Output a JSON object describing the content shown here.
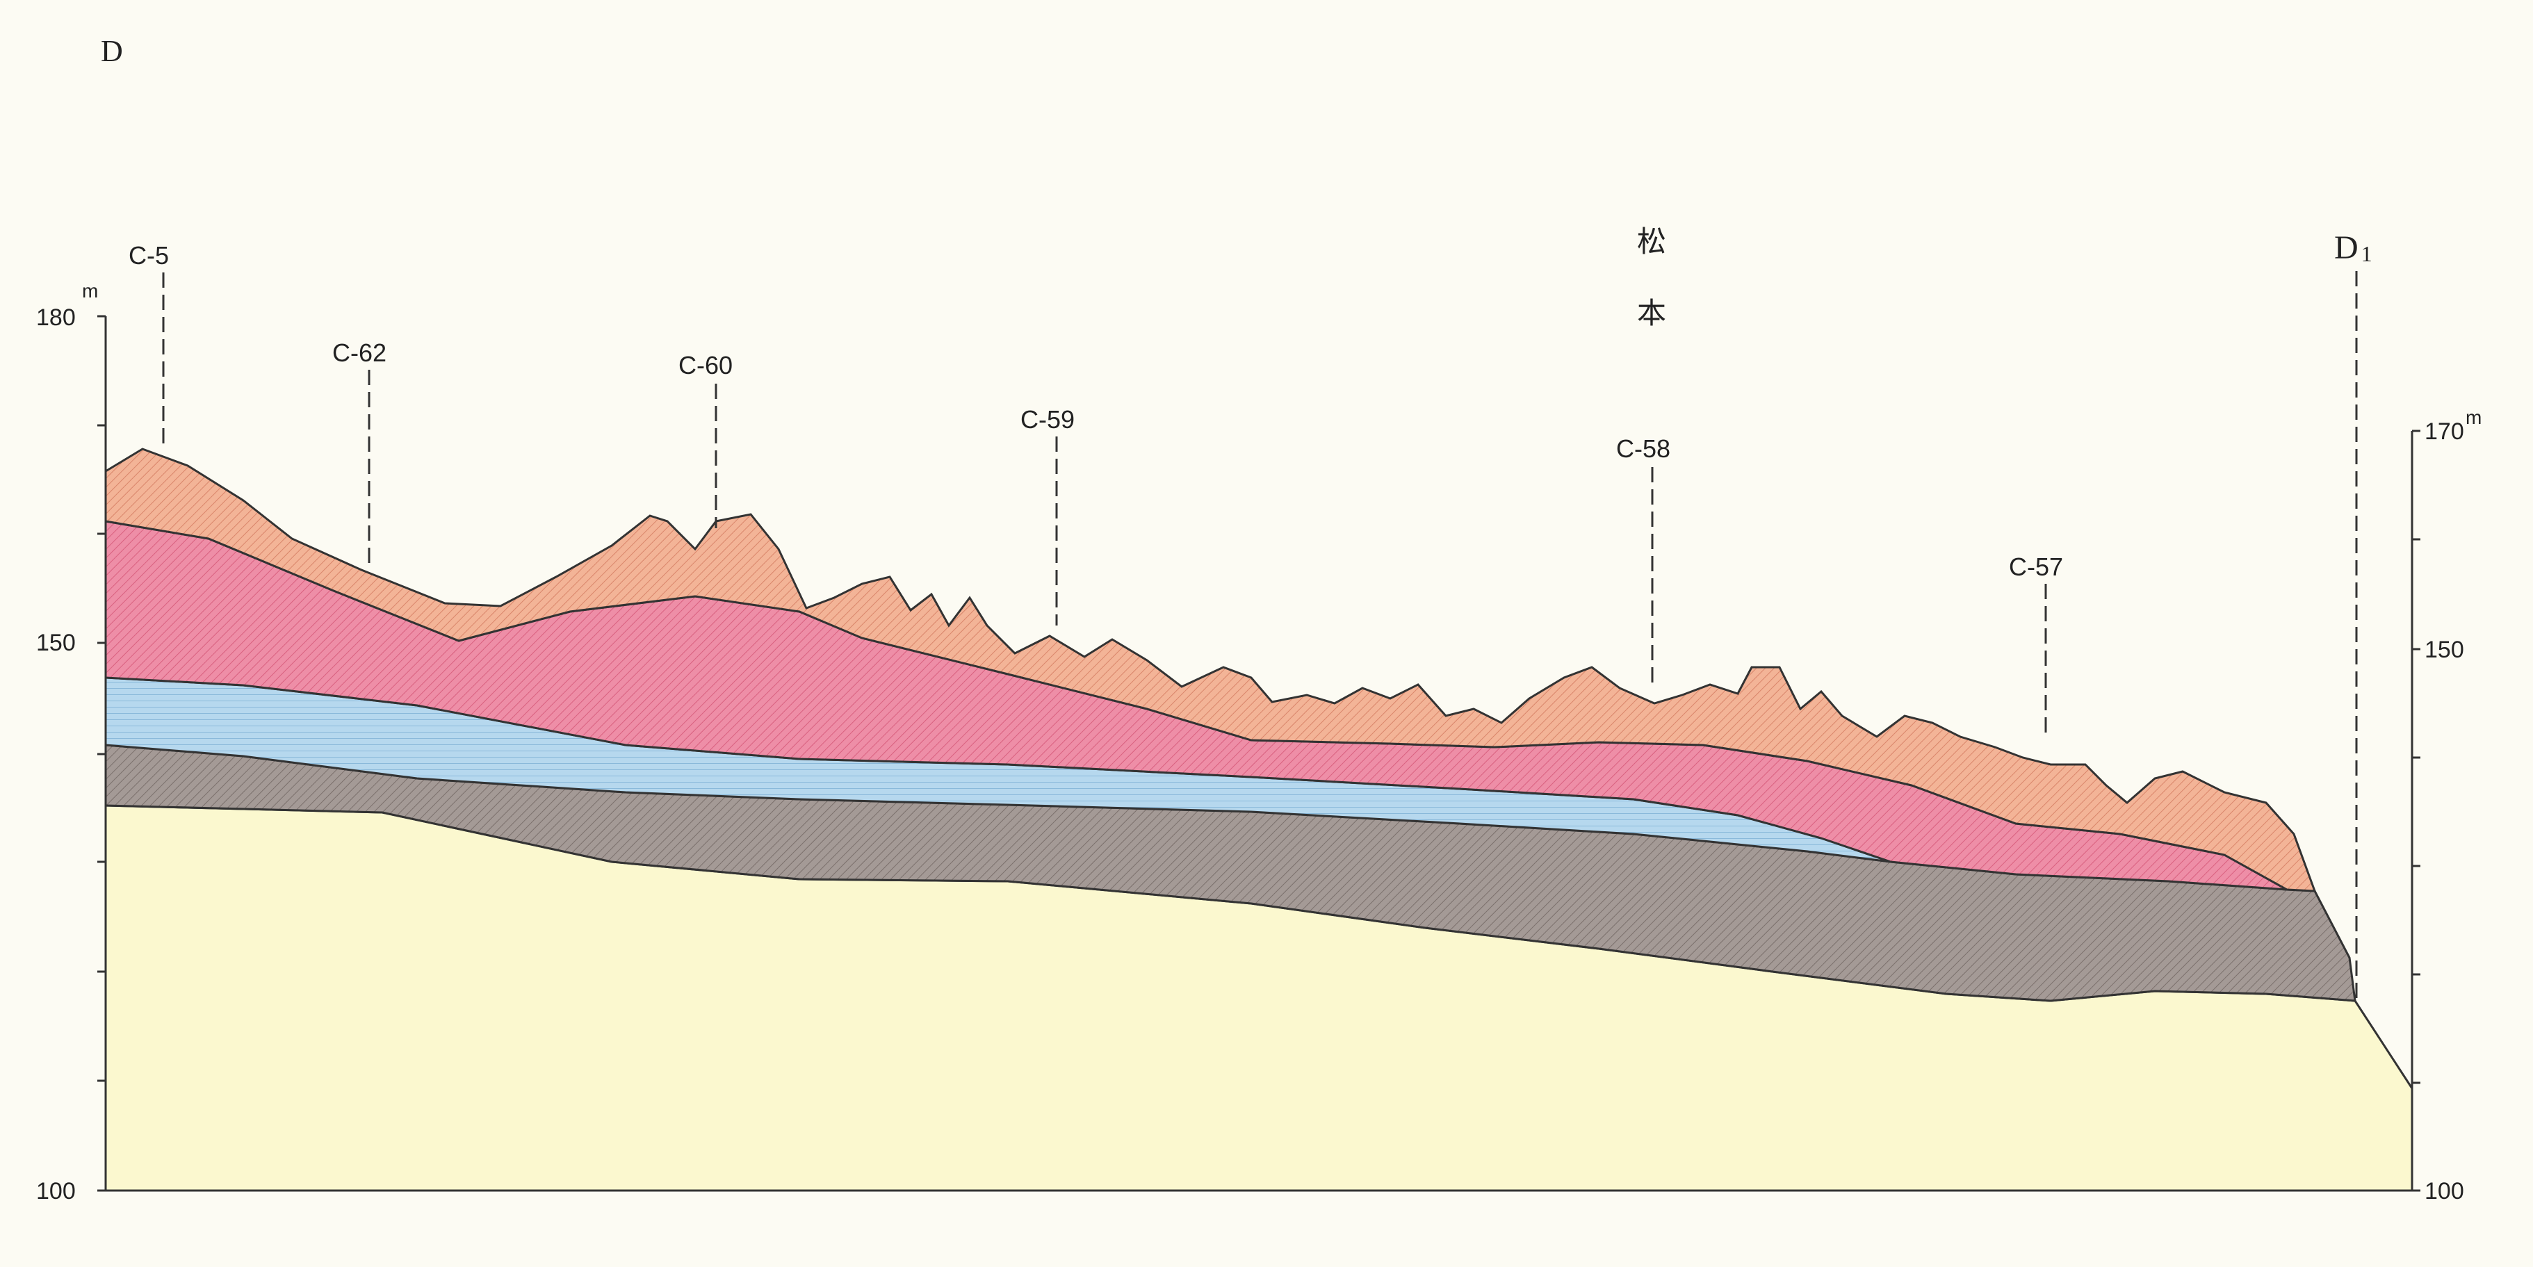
{
  "section": {
    "start_label": "D",
    "end_label_main": "D",
    "end_label_sub": "1",
    "place_name_line1": "松",
    "place_name_line2": "本"
  },
  "left_axis": {
    "unit": "m",
    "labels": {
      "top": "180",
      "middle": "150",
      "bottom": "100"
    },
    "range": [
      100,
      180
    ]
  },
  "right_axis": {
    "unit": "m",
    "labels": {
      "top": "170",
      "middle": "150",
      "bottom": "100"
    },
    "range": [
      100,
      170
    ]
  },
  "boreholes": [
    {
      "label": "C-5"
    },
    {
      "label": "C-62"
    },
    {
      "label": "C-60"
    },
    {
      "label": "C-59"
    },
    {
      "label": "C-58"
    },
    {
      "label": "C-57"
    }
  ],
  "layers": [
    {
      "id": "base",
      "color": "#fbf8cf"
    },
    {
      "id": "brown",
      "color": "#a49a96"
    },
    {
      "id": "blue",
      "color": "#b6d8ee"
    },
    {
      "id": "pink",
      "color": "#ee8ea7"
    },
    {
      "id": "orange",
      "color": "#f3b497"
    }
  ]
}
